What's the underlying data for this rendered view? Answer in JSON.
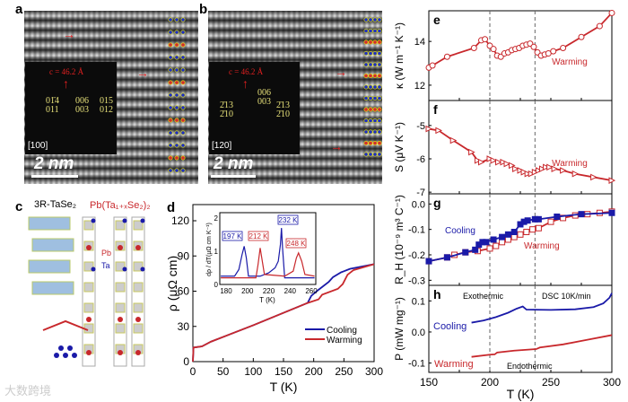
{
  "panels": {
    "a": {
      "label": "a",
      "lattice": "c = 46.2 Å",
      "zone": "[100]",
      "spots": [
        "01̄4",
        "011",
        "006",
        "003",
        "015",
        "012"
      ],
      "scale": "2 nm"
    },
    "b": {
      "label": "b",
      "lattice": "c = 46.2 Å",
      "zone": "[120]",
      "spots": [
        "2̄13",
        "2̄10",
        "006",
        "003",
        "2̄13",
        "2̄10"
      ],
      "scale": "2 nm"
    },
    "c": {
      "label": "c",
      "title1": "3R-TaSe₂",
      "title2": "Pb(Ta₁₊ₓSe₂)₂",
      "pb": "Pb",
      "ta": "Ta"
    }
  },
  "watermark": "大数跨境",
  "colors": {
    "cooling": "#1a1aa8",
    "warming": "#c8282c"
  },
  "chart_data": [
    {
      "id": "d",
      "label": "d",
      "type": "line",
      "xlabel": "T (K)",
      "ylabel": "ρ (μΩ cm)",
      "xlim": [
        0,
        300
      ],
      "ylim": [
        0,
        130
      ],
      "xticks": [
        0,
        50,
        100,
        150,
        200,
        250,
        300
      ],
      "yticks": [
        0,
        30,
        60,
        90,
        120
      ],
      "series": [
        {
          "name": "Cooling",
          "color": "#1a1aa8",
          "points": [
            [
              0,
              0
            ],
            [
              1,
              12
            ],
            [
              15,
              13
            ],
            [
              30,
              17
            ],
            [
              100,
              31
            ],
            [
              190,
              50
            ],
            [
              196,
              56
            ],
            [
              205,
              60
            ],
            [
              225,
              68
            ],
            [
              232,
              72
            ],
            [
              245,
              76
            ],
            [
              260,
              79
            ],
            [
              300,
              83
            ]
          ]
        },
        {
          "name": "Warming",
          "color": "#c8282c",
          "points": [
            [
              0,
              0
            ],
            [
              1,
              12
            ],
            [
              15,
              13
            ],
            [
              30,
              17
            ],
            [
              100,
              31
            ],
            [
              190,
              50
            ],
            [
              208,
              53
            ],
            [
              214,
              57
            ],
            [
              240,
              62
            ],
            [
              248,
              66
            ],
            [
              256,
              74
            ],
            [
              266,
              78
            ],
            [
              300,
              83
            ]
          ]
        }
      ],
      "legend": "bottom-right",
      "inset": {
        "xlabel": "T (K)",
        "ylabel": "dρ / dT(μΩ cm K⁻¹)",
        "xlim": [
          175,
          263
        ],
        "ylim": [
          0,
          2.2
        ],
        "xticks": [
          180,
          200,
          220,
          240,
          260
        ],
        "yticks": [
          0,
          1,
          2
        ],
        "annotations": [
          {
            "text": "197 K",
            "color": "#1a1aa8"
          },
          {
            "text": "212 K",
            "color": "#c8282c"
          },
          {
            "text": "232 K",
            "color": "#1a1aa8"
          },
          {
            "text": "248 K",
            "color": "#c8282c"
          }
        ],
        "series": [
          {
            "name": "Cooling",
            "color": "#1a1aa8",
            "points": [
              [
                175,
                0.25
              ],
              [
                188,
                0.25
              ],
              [
                192,
                0.45
              ],
              [
                195,
                0.9
              ],
              [
                197,
                1.15
              ],
              [
                199,
                0.8
              ],
              [
                201,
                0.25
              ],
              [
                212,
                0.25
              ],
              [
                220,
                0.35
              ],
              [
                226,
                0.5
              ],
              [
                229,
                0.7
              ],
              [
                231,
                1.2
              ],
              [
                232,
                1.7
              ],
              [
                233,
                1.1
              ],
              [
                235,
                0.2
              ],
              [
                250,
                0.2
              ],
              [
                263,
                0.2
              ]
            ]
          },
          {
            "name": "Warming",
            "color": "#c8282c",
            "points": [
              [
                175,
                0.2
              ],
              [
                200,
                0.2
              ],
              [
                208,
                0.2
              ],
              [
                210,
                0.6
              ],
              [
                212,
                1.1
              ],
              [
                214,
                0.7
              ],
              [
                216,
                0.3
              ],
              [
                235,
                0.25
              ],
              [
                243,
                0.4
              ],
              [
                246,
                0.8
              ],
              [
                248,
                0.95
              ],
              [
                251,
                0.7
              ],
              [
                254,
                0.3
              ],
              [
                263,
                0.25
              ]
            ]
          }
        ]
      }
    },
    {
      "id": "e",
      "label": "e",
      "type": "scatter-line",
      "xlim": [
        150,
        300
      ],
      "ylim": [
        11.3,
        15.4
      ],
      "yticks": [
        12,
        14
      ],
      "ylabel": "κ (W m⁻¹ K⁻¹)",
      "text": "Warming",
      "series": [
        {
          "name": "Warming",
          "marker": "circle",
          "color": "#c8282c",
          "points": [
            [
              150,
              12.8
            ],
            [
              153,
              12.9
            ],
            [
              165,
              13.3
            ],
            [
              187,
              13.7
            ],
            [
              193,
              14.05
            ],
            [
              196,
              14.1
            ],
            [
              200,
              13.8
            ],
            [
              203,
              13.65
            ],
            [
              206,
              13.35
            ],
            [
              209,
              13.3
            ],
            [
              212,
              13.45
            ],
            [
              215,
              13.5
            ],
            [
              218,
              13.6
            ],
            [
              221,
              13.65
            ],
            [
              224,
              13.7
            ],
            [
              227,
              13.8
            ],
            [
              230,
              13.85
            ],
            [
              233,
              13.9
            ],
            [
              236,
              13.75
            ],
            [
              239,
              13.5
            ],
            [
              242,
              13.35
            ],
            [
              245,
              13.4
            ],
            [
              248,
              13.45
            ],
            [
              252,
              13.55
            ],
            [
              260,
              13.7
            ],
            [
              275,
              14.2
            ],
            [
              290,
              14.7
            ],
            [
              300,
              15.3
            ]
          ]
        }
      ]
    },
    {
      "id": "f",
      "label": "f",
      "type": "scatter-line",
      "xlim": [
        150,
        300
      ],
      "ylim": [
        -7.05,
        -4.25
      ],
      "yticks": [
        -5,
        -6,
        -7
      ],
      "ylabel": "S (μV K⁻¹)",
      "text": "Warming",
      "series": [
        {
          "name": "Warming",
          "marker": "triangle",
          "color": "#c8282c",
          "points": [
            [
              150,
              -5.1
            ],
            [
              158,
              -5.15
            ],
            [
              170,
              -5.45
            ],
            [
              185,
              -5.8
            ],
            [
              190,
              -6.05
            ],
            [
              193,
              -6.1
            ],
            [
              200,
              -6.0
            ],
            [
              203,
              -6.05
            ],
            [
              207,
              -6.1
            ],
            [
              211,
              -6.1
            ],
            [
              214,
              -6.15
            ],
            [
              218,
              -6.2
            ],
            [
              221,
              -6.3
            ],
            [
              225,
              -6.35
            ],
            [
              228,
              -6.4
            ],
            [
              231,
              -6.45
            ],
            [
              234,
              -6.45
            ],
            [
              237,
              -6.4
            ],
            [
              240,
              -6.35
            ],
            [
              243,
              -6.3
            ],
            [
              246,
              -6.25
            ],
            [
              249,
              -6.25
            ],
            [
              253,
              -6.3
            ],
            [
              260,
              -6.35
            ],
            [
              270,
              -6.45
            ],
            [
              285,
              -6.55
            ],
            [
              300,
              -6.65
            ]
          ]
        }
      ]
    },
    {
      "id": "g",
      "label": "g",
      "type": "scatter-line",
      "xlim": [
        150,
        300
      ],
      "ylim": [
        -0.32,
        0.04
      ],
      "yticks": [
        0.0,
        -0.1,
        -0.2,
        -0.3
      ],
      "ylabel": "R_H (10⁻⁹ m³ C⁻¹)",
      "texts": [
        "Cooling",
        "Warming"
      ],
      "series": [
        {
          "name": "Warming",
          "marker": "open-square",
          "color": "#c8282c",
          "points": [
            [
              150,
              -0.225
            ],
            [
              165,
              -0.21
            ],
            [
              171,
              -0.2
            ],
            [
              180,
              -0.19
            ],
            [
              190,
              -0.185
            ],
            [
              200,
              -0.175
            ],
            [
              205,
              -0.165
            ],
            [
              210,
              -0.15
            ],
            [
              215,
              -0.14
            ],
            [
              220,
              -0.13
            ],
            [
              225,
              -0.12
            ],
            [
              230,
              -0.11
            ],
            [
              235,
              -0.1
            ],
            [
              240,
              -0.095
            ],
            [
              250,
              -0.07
            ],
            [
              260,
              -0.055
            ],
            [
              270,
              -0.045
            ],
            [
              280,
              -0.04
            ],
            [
              290,
              -0.035
            ],
            [
              300,
              -0.03
            ]
          ]
        },
        {
          "name": "Cooling",
          "marker": "filled-square",
          "color": "#1a1aa8",
          "points": [
            [
              150,
              -0.225
            ],
            [
              165,
              -0.21
            ],
            [
              180,
              -0.19
            ],
            [
              188,
              -0.18
            ],
            [
              191,
              -0.16
            ],
            [
              194,
              -0.15
            ],
            [
              197,
              -0.15
            ],
            [
              203,
              -0.14
            ],
            [
              210,
              -0.13
            ],
            [
              215,
              -0.12
            ],
            [
              220,
              -0.11
            ],
            [
              225,
              -0.08
            ],
            [
              228,
              -0.07
            ],
            [
              231,
              -0.065
            ],
            [
              237,
              -0.06
            ],
            [
              240,
              -0.06
            ],
            [
              255,
              -0.05
            ],
            [
              275,
              -0.04
            ],
            [
              300,
              -0.035
            ]
          ]
        }
      ]
    },
    {
      "id": "h",
      "label": "h",
      "type": "line",
      "xlim": [
        150,
        300
      ],
      "ylim": [
        -0.13,
        0.15
      ],
      "yticks": [
        0.1,
        0.0,
        -0.1
      ],
      "xticks": [
        150,
        200,
        250,
        300
      ],
      "xlabel": "T (K)",
      "ylabel": "P (mW mg⁻¹)",
      "texts": [
        "Exothermic",
        "DSC 10K/min",
        "Cooling",
        "Warming",
        "Endothermic"
      ],
      "series": [
        {
          "name": "Cooling",
          "color": "#1a1aa8",
          "points": [
            [
              185,
              0.03
            ],
            [
              195,
              0.037
            ],
            [
              205,
              0.048
            ],
            [
              215,
              0.062
            ],
            [
              222,
              0.075
            ],
            [
              227,
              0.082
            ],
            [
              230,
              0.072
            ],
            [
              250,
              0.071
            ],
            [
              270,
              0.073
            ],
            [
              285,
              0.08
            ],
            [
              293,
              0.092
            ],
            [
              298,
              0.11
            ],
            [
              300,
              0.125
            ]
          ]
        },
        {
          "name": "Warming",
          "color": "#c8282c",
          "points": [
            [
              185,
              -0.08
            ],
            [
              200,
              -0.073
            ],
            [
              204,
              -0.072
            ],
            [
              206,
              -0.066
            ],
            [
              220,
              -0.06
            ],
            [
              238,
              -0.055
            ],
            [
              241,
              -0.05
            ],
            [
              260,
              -0.04
            ],
            [
              280,
              -0.025
            ],
            [
              300,
              -0.01
            ]
          ]
        }
      ]
    }
  ],
  "dashed_T": [
    200,
    237
  ]
}
